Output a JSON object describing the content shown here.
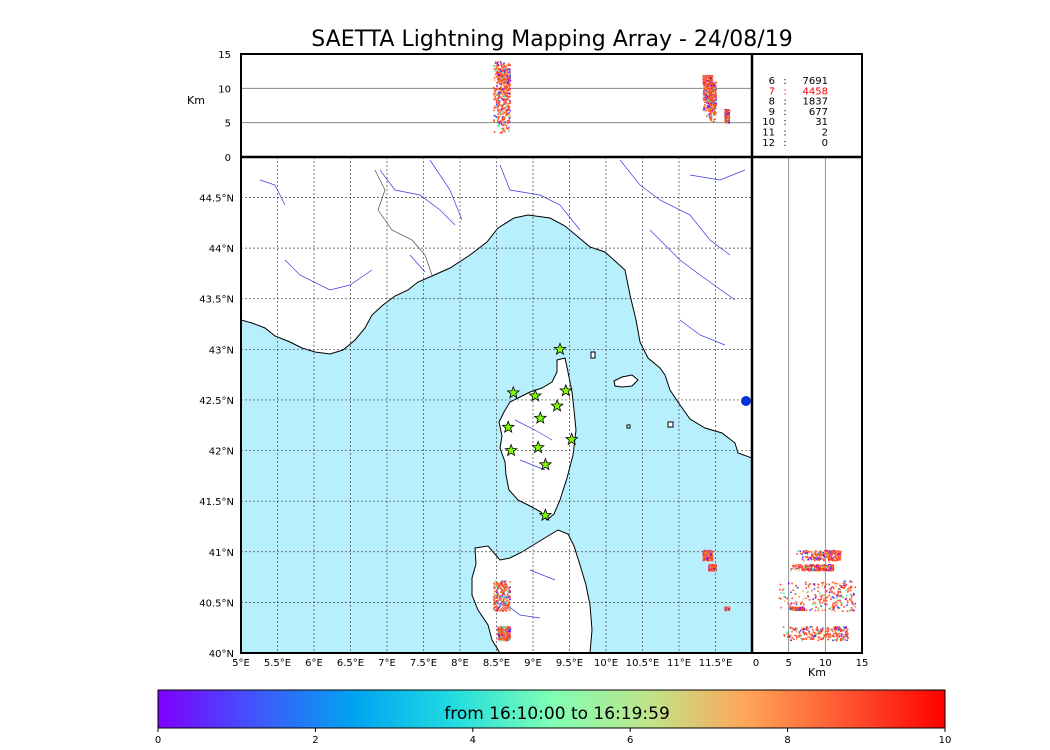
{
  "chart_data": {
    "type": "scatter",
    "title": "SAETTA Lightning Mapping Array - 24/08/19",
    "map": {
      "lon_range": [
        5,
        12
      ],
      "lat_range": [
        40,
        44.9
      ],
      "lon_ticks": [
        "5°E",
        "5.5°E",
        "6°E",
        "6.5°E",
        "7°E",
        "7.5°E",
        "8°E",
        "8.5°E",
        "9°E",
        "9.5°E",
        "10°E",
        "10.5°E",
        "11°E",
        "11.5°E"
      ],
      "lat_ticks": [
        "40°N",
        "40.5°N",
        "41°N",
        "41.5°N",
        "42°N",
        "42.5°N",
        "43°N",
        "43.5°N",
        "44°N",
        "44.5°N"
      ],
      "grid": true
    },
    "altitude_panel": {
      "ylabel": "Km",
      "y_ticks": [
        "0",
        "5",
        "10",
        "15"
      ],
      "y_range": [
        0,
        15
      ],
      "reference_lines": [
        5,
        10
      ]
    },
    "altitude_side_panel": {
      "xlabel": "Km",
      "x_ticks": [
        "0",
        "5",
        "10",
        "15"
      ],
      "x_range": [
        0,
        15
      ],
      "reference_lines": [
        5,
        10
      ]
    },
    "station_counts": [
      {
        "stations": "6",
        "sep": ":",
        "count": "7691",
        "color": "#000000"
      },
      {
        "stations": "7",
        "sep": ":",
        "count": "4458",
        "color": "#ff0000"
      },
      {
        "stations": "8",
        "sep": ":",
        "count": "1837",
        "color": "#000000"
      },
      {
        "stations": "9",
        "sep": ":",
        "count": "677",
        "color": "#000000"
      },
      {
        "stations": "10",
        "sep": ":",
        "count": "31",
        "color": "#000000"
      },
      {
        "stations": "11",
        "sep": ":",
        "count": "2",
        "color": "#000000"
      },
      {
        "stations": "12",
        "sep": ":",
        "count": "0",
        "color": "#000000"
      }
    ],
    "stations": [
      {
        "lon": 9.37,
        "lat": 43.0
      },
      {
        "lon": 8.73,
        "lat": 42.57
      },
      {
        "lon": 9.03,
        "lat": 42.54
      },
      {
        "lon": 9.45,
        "lat": 42.59
      },
      {
        "lon": 9.33,
        "lat": 42.44
      },
      {
        "lon": 9.1,
        "lat": 42.32
      },
      {
        "lon": 8.66,
        "lat": 42.23
      },
      {
        "lon": 9.53,
        "lat": 42.11
      },
      {
        "lon": 8.7,
        "lat": 42.0
      },
      {
        "lon": 9.07,
        "lat": 42.03
      },
      {
        "lon": 9.17,
        "lat": 41.86
      },
      {
        "lon": 9.17,
        "lat": 41.36
      }
    ],
    "series": [
      {
        "lon_range": [
          8.45,
          8.68
        ],
        "lat_range": [
          40.42,
          40.72
        ],
        "alt_range": [
          3,
          14
        ]
      },
      {
        "lon_range": [
          8.5,
          8.68
        ],
        "lat_range": [
          40.13,
          40.27
        ],
        "alt_range": [
          4,
          13
        ]
      },
      {
        "lon_range": [
          11.32,
          11.45
        ],
        "lat_range": [
          40.92,
          41.02
        ],
        "alt_range": [
          6,
          12
        ]
      },
      {
        "lon_range": [
          11.4,
          11.5
        ],
        "lat_range": [
          40.82,
          40.88
        ],
        "alt_range": [
          5,
          11
        ]
      },
      {
        "lon_range": [
          11.62,
          11.68
        ],
        "lat_range": [
          40.43,
          40.46
        ],
        "alt_range": [
          5,
          7
        ]
      }
    ],
    "colorbar": {
      "label": "from 16:10:00 to 16:19:59",
      "range": [
        0,
        10
      ],
      "ticks": [
        "0",
        "2",
        "4",
        "6",
        "8",
        "10"
      ],
      "colormap": "rainbow"
    },
    "colors": {
      "sea": "#b8effc",
      "land": "#ffffff",
      "rivers": "#2a2ae6",
      "stations": "#7dff00",
      "coast": "#000000"
    }
  }
}
